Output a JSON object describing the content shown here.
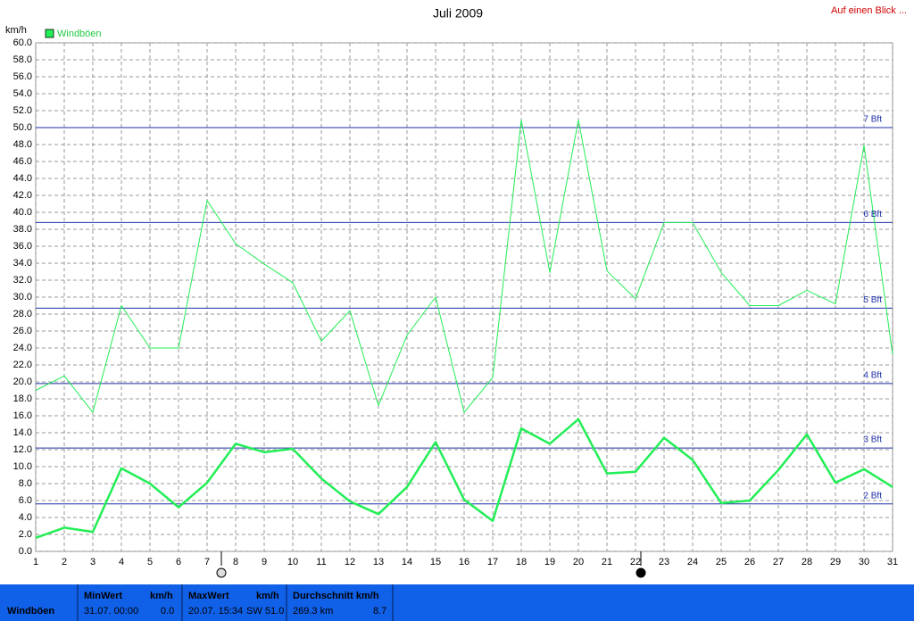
{
  "chart_data": {
    "type": "line",
    "title": "Juli 2009",
    "y_unit": "km/h",
    "link": "Auf einen Blick ...",
    "x": [
      1,
      2,
      3,
      4,
      5,
      6,
      7,
      8,
      9,
      10,
      11,
      12,
      13,
      14,
      15,
      16,
      17,
      18,
      19,
      20,
      21,
      22,
      23,
      24,
      25,
      26,
      27,
      28,
      29,
      30,
      31
    ],
    "xlim": [
      1,
      31
    ],
    "ylim": [
      0,
      60
    ],
    "yticks": [
      {
        "value": 0,
        "label": "0.0"
      },
      {
        "value": 2,
        "label": "2.0"
      },
      {
        "value": 4,
        "label": "4.0"
      },
      {
        "value": 6,
        "label": "6.0"
      },
      {
        "value": 8,
        "label": "8.0"
      },
      {
        "value": 10,
        "label": "10.0"
      },
      {
        "value": 12,
        "label": "12.0"
      },
      {
        "value": 14,
        "label": "14.0"
      },
      {
        "value": 16,
        "label": "16.0"
      },
      {
        "value": 18,
        "label": "18.0"
      },
      {
        "value": 20,
        "label": "20.0"
      },
      {
        "value": 22,
        "label": "22.0"
      },
      {
        "value": 24,
        "label": "24.0"
      },
      {
        "value": 26,
        "label": "26.0"
      },
      {
        "value": 28,
        "label": "28.0"
      },
      {
        "value": 30,
        "label": "30.0"
      },
      {
        "value": 32,
        "label": "32.0"
      },
      {
        "value": 34,
        "label": "34.0"
      },
      {
        "value": 36,
        "label": "36.0"
      },
      {
        "value": 38,
        "label": "38.0"
      },
      {
        "value": 40,
        "label": "40.0"
      },
      {
        "value": 42,
        "label": "42.0"
      },
      {
        "value": 44,
        "label": "44.0"
      },
      {
        "value": 46,
        "label": "46.0"
      },
      {
        "value": 48,
        "label": "48.0"
      },
      {
        "value": 50,
        "label": "50.0"
      },
      {
        "value": 52,
        "label": "52.0"
      },
      {
        "value": 54,
        "label": "54.0"
      },
      {
        "value": 56,
        "label": "56.0"
      },
      {
        "value": 58,
        "label": "58.0"
      },
      {
        "value": 60,
        "label": "60.0"
      }
    ],
    "grid": true,
    "series": [
      {
        "name": "Windböen",
        "color": "#22ee55",
        "width": 1,
        "values": [
          19.0,
          20.7,
          16.4,
          29.0,
          24.0,
          24.0,
          41.4,
          36.3,
          33.9,
          31.7,
          24.8,
          28.4,
          17.2,
          25.5,
          30.0,
          16.4,
          20.5,
          50.9,
          32.9,
          50.9,
          33.1,
          29.8,
          38.8,
          38.8,
          32.9,
          29.0,
          29.0,
          30.8,
          29.2,
          47.9,
          23.2
        ]
      },
      {
        "color": "#22ee55",
        "width": 2.5,
        "values": [
          1.6,
          2.8,
          2.3,
          9.8,
          8.0,
          5.2,
          8.1,
          12.7,
          11.7,
          12.1,
          8.6,
          5.9,
          4.4,
          7.6,
          12.9,
          6.1,
          3.6,
          14.5,
          12.7,
          15.6,
          9.2,
          9.4,
          13.4,
          10.8,
          5.7,
          6.0,
          9.6,
          13.8,
          8.1,
          9.7,
          7.6
        ]
      }
    ],
    "reference_lines": [
      {
        "value": 5.6,
        "label": "2 Bft"
      },
      {
        "value": 12.2,
        "label": "3 Bft"
      },
      {
        "value": 19.8,
        "label": "4 Bft"
      },
      {
        "value": 28.7,
        "label": "5 Bft"
      },
      {
        "value": 38.8,
        "label": "6 Bft"
      },
      {
        "value": 50.0,
        "label": "7 Bft"
      }
    ],
    "reference_color": "#1c2ea8"
  },
  "footer": {
    "label": "Windböen",
    "min": {
      "title": "MinWert",
      "unit": "km/h",
      "time": "31.07.  00:00",
      "value": "0.0"
    },
    "max": {
      "title": "MaxWert",
      "unit": "km/h",
      "time": "20.07.  15:34",
      "dir": "SW",
      "value": "51.0"
    },
    "avg": {
      "title": "Durchschnitt km/h",
      "distance": "269.3 km",
      "value": "8.7"
    }
  }
}
